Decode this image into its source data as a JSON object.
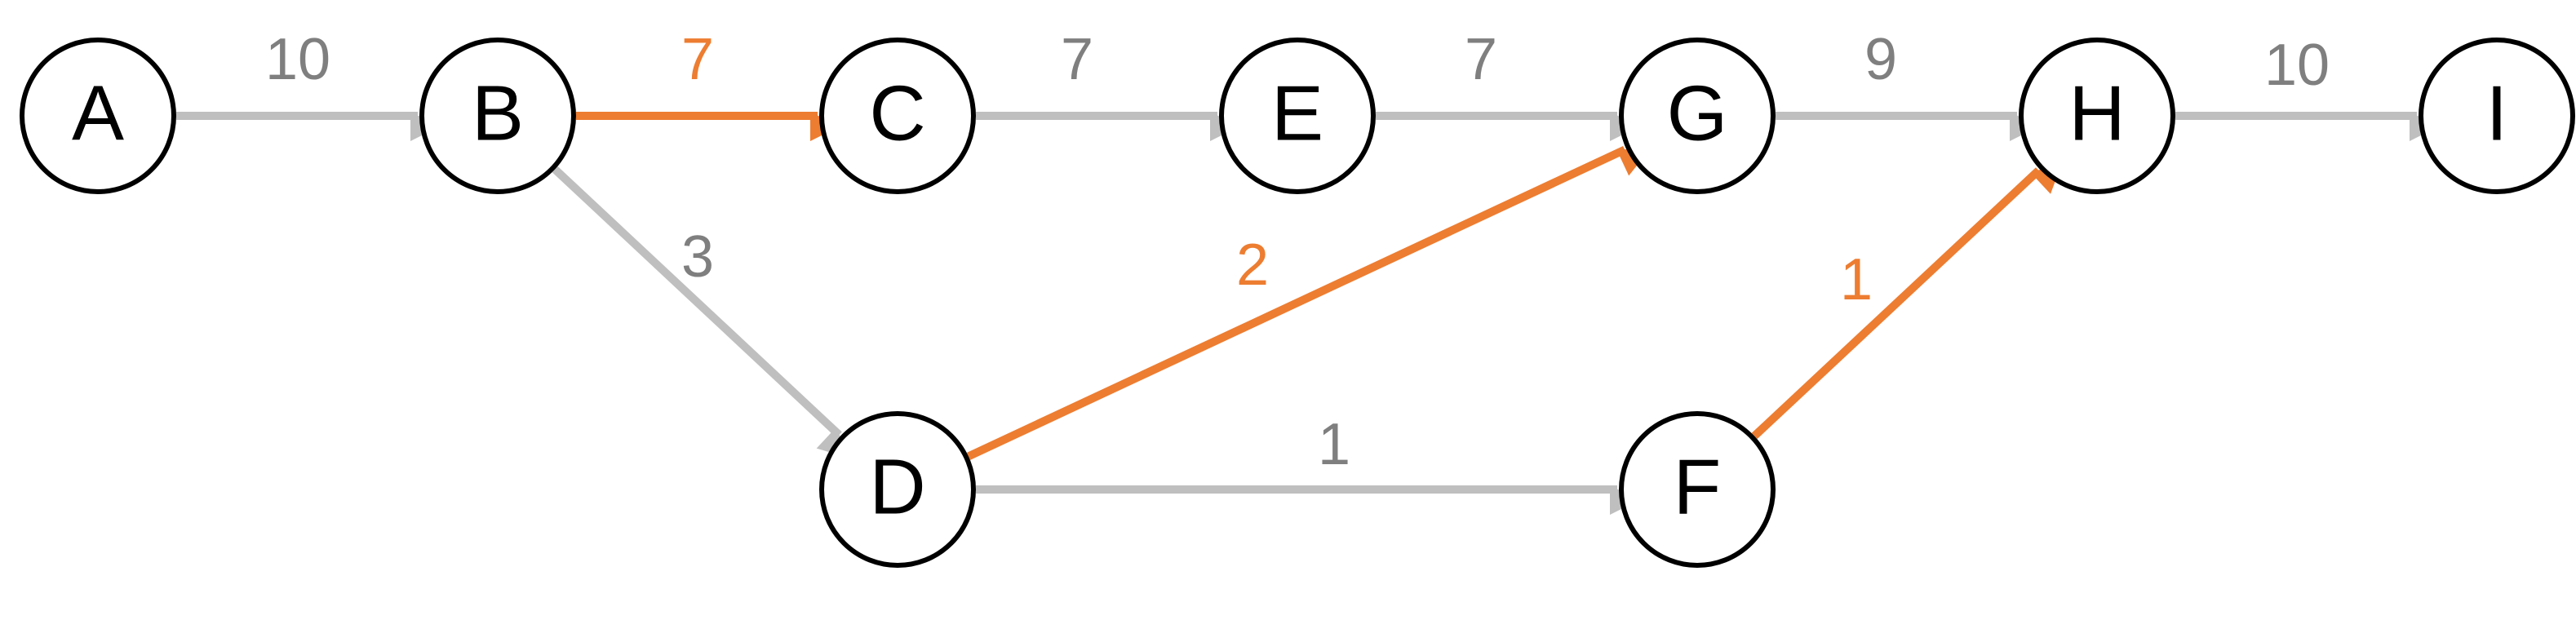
{
  "colors": {
    "default_edge": "#bfbfbf",
    "highlight_edge": "#ed7d31",
    "default_label": "#7f7f7f",
    "highlight_label": "#ed7d31",
    "node_stroke": "#000000",
    "node_fill": "#ffffff"
  },
  "nodes": [
    {
      "id": "A",
      "label": "A"
    },
    {
      "id": "B",
      "label": "B"
    },
    {
      "id": "C",
      "label": "C"
    },
    {
      "id": "E",
      "label": "E"
    },
    {
      "id": "G",
      "label": "G"
    },
    {
      "id": "H",
      "label": "H"
    },
    {
      "id": "I",
      "label": "I"
    },
    {
      "id": "D",
      "label": "D"
    },
    {
      "id": "F",
      "label": "F"
    }
  ],
  "edges": [
    {
      "from": "A",
      "to": "B",
      "weight": "10",
      "highlighted": false
    },
    {
      "from": "B",
      "to": "C",
      "weight": "7",
      "highlighted": true
    },
    {
      "from": "C",
      "to": "E",
      "weight": "7",
      "highlighted": false
    },
    {
      "from": "E",
      "to": "G",
      "weight": "7",
      "highlighted": false
    },
    {
      "from": "G",
      "to": "H",
      "weight": "9",
      "highlighted": false
    },
    {
      "from": "H",
      "to": "I",
      "weight": "10",
      "highlighted": false
    },
    {
      "from": "B",
      "to": "D",
      "weight": "3",
      "highlighted": false
    },
    {
      "from": "D",
      "to": "G",
      "weight": "2",
      "highlighted": true
    },
    {
      "from": "D",
      "to": "F",
      "weight": "1",
      "highlighted": false
    },
    {
      "from": "F",
      "to": "H",
      "weight": "1",
      "highlighted": true
    }
  ]
}
